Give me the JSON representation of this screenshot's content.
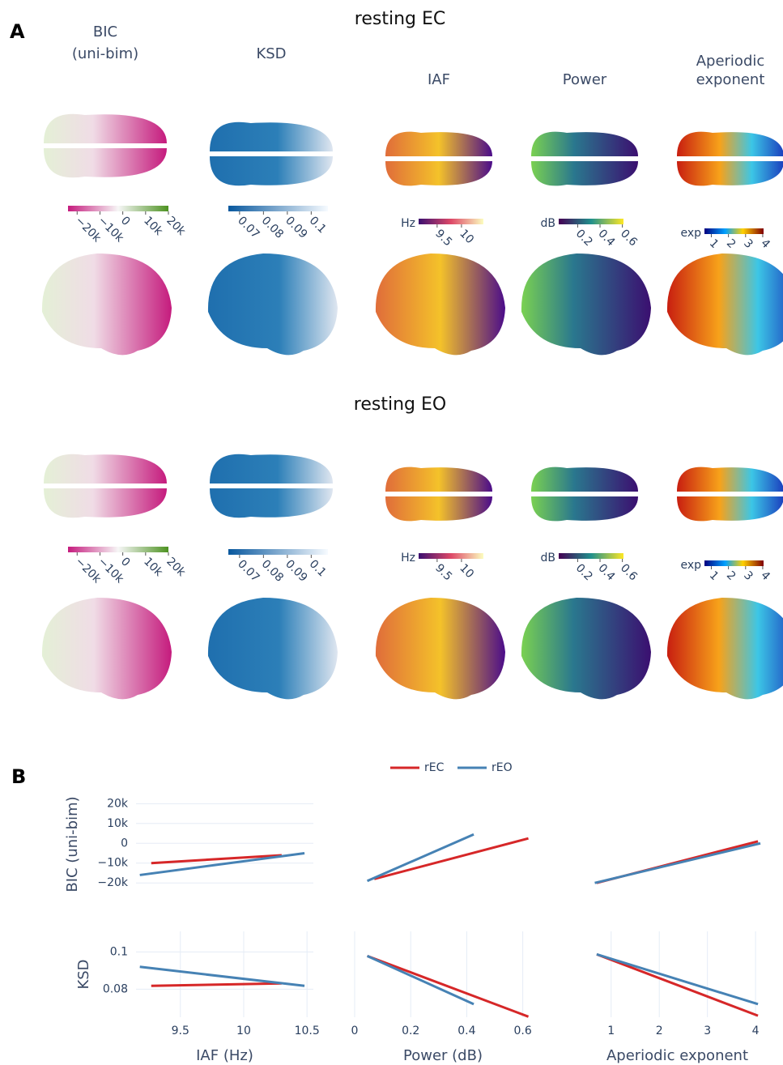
{
  "panel_a": {
    "label": "A",
    "conditions": [
      "resting EC",
      "resting EO"
    ],
    "columns": [
      {
        "header": [
          "BIC",
          "(uni-bim)"
        ],
        "colorbar": {
          "range": [
            -24000,
            20000
          ],
          "ticks": [
            {
              "value": -20000,
              "label": "−20k"
            },
            {
              "value": -10000,
              "label": "−10k"
            },
            0,
            {
              "value": 10000,
              "label": "10k"
            },
            {
              "value": 20000,
              "label": "20k"
            }
          ]
        }
      },
      {
        "header": [
          "KSD"
        ],
        "colorbar": {
          "range": [
            0.0653,
            0.107
          ],
          "ticks": [
            0.07,
            0.08,
            0.09,
            0.1
          ]
        }
      },
      {
        "header": [
          "IAF"
        ],
        "colorbar": {
          "unit": "Hz",
          "range": [
            9.12,
            10.45
          ],
          "ticks": [
            9.5,
            10
          ]
        }
      },
      {
        "header": [
          "Power"
        ],
        "colorbar": {
          "unit": "dB",
          "range": [
            0.03,
            0.61
          ],
          "ticks": [
            0.2,
            0.4,
            0.6
          ]
        }
      },
      {
        "header": [
          "Aperiodic",
          "exponent"
        ],
        "colorbar": {
          "unit": "exp",
          "range": [
            0.6,
            4.05
          ],
          "ticks": [
            1,
            2,
            3,
            4
          ]
        }
      }
    ]
  },
  "panel_b": {
    "label": "B"
  },
  "chart_data": [
    {
      "type": "line",
      "ylabel": "BIC (uni-bim)",
      "xlim": [
        9.15,
        10.55
      ],
      "ylim": [
        -24000,
        23000
      ],
      "yticks": [
        {
          "value": -20000,
          "label": "−20k"
        },
        {
          "value": -10000,
          "label": "−10k"
        },
        0,
        {
          "value": 10000,
          "label": "10k"
        },
        {
          "value": 20000,
          "label": "20k"
        }
      ],
      "series": [
        {
          "name": "rEC",
          "color": "#d62728",
          "x": [
            9.27,
            10.3
          ],
          "values": [
            -10000,
            -6000
          ]
        },
        {
          "name": "rEO",
          "color": "#4682b4",
          "x": [
            9.18,
            10.48
          ],
          "values": [
            -16000,
            -5000
          ]
        }
      ]
    },
    {
      "type": "line",
      "xlim": [
        0,
        0.63
      ],
      "ylim": [
        -24000,
        23000
      ],
      "series": [
        {
          "name": "rEC",
          "color": "#d62728",
          "x": [
            0.07,
            0.62
          ],
          "values": [
            -18000,
            2500
          ]
        },
        {
          "name": "rEO",
          "color": "#4682b4",
          "x": [
            0.045,
            0.425
          ],
          "values": [
            -19000,
            4500
          ]
        }
      ]
    },
    {
      "type": "line",
      "xlim": [
        0.55,
        4.2
      ],
      "ylim": [
        -24000,
        23000
      ],
      "series": [
        {
          "name": "rEC",
          "color": "#d62728",
          "x": [
            0.7,
            4.05
          ],
          "values": [
            -20000,
            1000
          ]
        },
        {
          "name": "rEO",
          "color": "#4682b4",
          "x": [
            0.66,
            4.1
          ],
          "values": [
            -20000,
            0
          ]
        }
      ]
    },
    {
      "type": "line",
      "ylabel": "KSD",
      "xlabel": "IAF (Hz)",
      "xlim": [
        9.15,
        10.55
      ],
      "ylim": [
        0.065,
        0.111
      ],
      "xticks": [
        9.5,
        10,
        10.5
      ],
      "yticks": [
        0.08,
        0.1
      ],
      "series": [
        {
          "name": "rEC",
          "color": "#d62728",
          "x": [
            9.27,
            10.3
          ],
          "values": [
            0.0818,
            0.0831
          ]
        },
        {
          "name": "rEO",
          "color": "#4682b4",
          "x": [
            9.18,
            10.48
          ],
          "values": [
            0.092,
            0.0818
          ]
        }
      ]
    },
    {
      "type": "line",
      "xlabel": "Power (dB)",
      "xlim": [
        0,
        0.63
      ],
      "ylim": [
        0.065,
        0.111
      ],
      "xticks": [
        0,
        0.2,
        0.4,
        0.6
      ],
      "series": [
        {
          "name": "rEC",
          "color": "#d62728",
          "x": [
            0.045,
            0.62
          ],
          "values": [
            0.0978,
            0.0653
          ]
        },
        {
          "name": "rEO",
          "color": "#4682b4",
          "x": [
            0.045,
            0.425
          ],
          "values": [
            0.0978,
            0.072
          ]
        }
      ]
    },
    {
      "type": "line",
      "xlabel": "Aperiodic exponent",
      "xlim": [
        0.55,
        4.2
      ],
      "ylim": [
        0.065,
        0.111
      ],
      "xticks": [
        1,
        2,
        3,
        4
      ],
      "series": [
        {
          "name": "rEC",
          "color": "#d62728",
          "x": [
            0.7,
            4.05
          ],
          "values": [
            0.0987,
            0.0658
          ]
        },
        {
          "name": "rEO",
          "color": "#4682b4",
          "x": [
            0.7,
            4.05
          ],
          "values": [
            0.0987,
            0.072
          ]
        }
      ]
    }
  ]
}
